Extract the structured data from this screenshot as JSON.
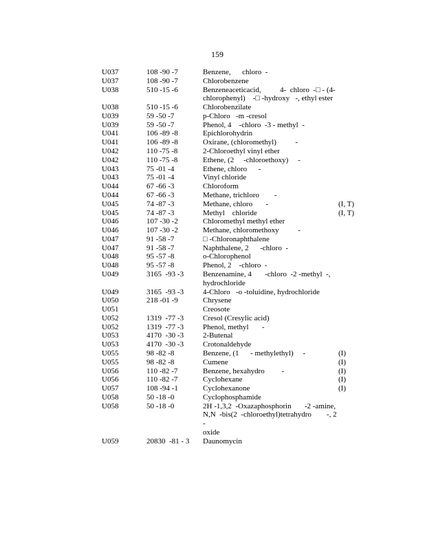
{
  "page_number": "159",
  "rows": [
    {
      "code": "U037",
      "cas": "108 -90 -7",
      "name": "Benzene,      chloro  -",
      "flag": ""
    },
    {
      "code": "U037",
      "cas": "108 -90 -7",
      "name": "Chlorobenzene",
      "flag": ""
    },
    {
      "code": "U038",
      "cas": "510 -15 -6",
      "name": "Benzeneaceticacid,          4-  chloro  -□ - (4-\nchlorophenyl)    -□ -hydroxy   -, ethyl ester",
      "flag": ""
    },
    {
      "code": "U038",
      "cas": "510 -15 -6",
      "name": "Chlorobenzilate",
      "flag": ""
    },
    {
      "code": "U039",
      "cas": "59 -50 -7",
      "name": "p-Chloro   -m -cresol",
      "flag": ""
    },
    {
      "code": "U039",
      "cas": "59 -50 -7",
      "name": "Phenol, 4    -chloro  -3 - methyl  -",
      "flag": ""
    },
    {
      "code": "U041",
      "cas": "106 -89 -8",
      "name": "Epichlorohydrin",
      "flag": ""
    },
    {
      "code": "U041",
      "cas": "106 -89 -8",
      "name": "Oxirane, (chloromethyl)          -",
      "flag": ""
    },
    {
      "code": "U042",
      "cas": "110 -75 -8",
      "name": "2-Chloroethyl vinyl ether",
      "flag": ""
    },
    {
      "code": "U042",
      "cas": "110 -75 -8",
      "name": "Ethene, (2     -chloroethoxy)     -",
      "flag": ""
    },
    {
      "code": "U043",
      "cas": "75 -01 -4",
      "name": "Ethene, chloro      -",
      "flag": ""
    },
    {
      "code": "U043",
      "cas": "75 -01 -4",
      "name": "Vinyl chloride",
      "flag": ""
    },
    {
      "code": "U044",
      "cas": "67 -66 -3",
      "name": "Chloroform",
      "flag": ""
    },
    {
      "code": "U044",
      "cas": "67 -66 -3",
      "name": "Methane, trichloro        -",
      "flag": ""
    },
    {
      "code": "U045",
      "cas": "74 -87 -3",
      "name": "Methane, chloro       -",
      "flag": "(I, T)"
    },
    {
      "code": "U045",
      "cas": "74 -87 -3",
      "name": "Methyl    chloride",
      "flag": "(I, T)"
    },
    {
      "code": "U046",
      "cas": "107 -30 -2",
      "name": "Chloromethyl methyl ether",
      "flag": ""
    },
    {
      "code": "U046",
      "cas": "107 -30 -2",
      "name": "Methane, chloromethoxy          -",
      "flag": ""
    },
    {
      "code": "U047",
      "cas": "91 -58 -7",
      "name": "□ -Chloronaphthalene",
      "flag": ""
    },
    {
      "code": "U047",
      "cas": "91 -58 -7",
      "name": "Naphthalene, 2      -chloro  -",
      "flag": ""
    },
    {
      "code": "U048",
      "cas": "95 -57 -8",
      "name": "o-Chlorophenol",
      "flag": ""
    },
    {
      "code": "U048",
      "cas": "95 -57 -8",
      "name": "Phenol, 2    -chloro  -",
      "flag": ""
    },
    {
      "code": "U049",
      "cas": "3165  -93 -3",
      "name": "Benzenamine, 4       -chloro  -2 -methyl  -,\nhydrochloride",
      "flag": ""
    },
    {
      "code": "U049",
      "cas": "3165  -93 -3",
      "name": "4-Chloro   -o -toluidine, hydrochloride",
      "flag": ""
    },
    {
      "code": "U050",
      "cas": "218 -01 -9",
      "name": "Chrysene",
      "flag": ""
    },
    {
      "code": "U051",
      "cas": "",
      "name": "Creosote",
      "flag": ""
    },
    {
      "code": "U052",
      "cas": "1319  -77 -3",
      "name": "Cresol (Cresylic acid)",
      "flag": ""
    },
    {
      "code": "U052",
      "cas": "1319  -77 -3",
      "name": "Phenol, methyl       -",
      "flag": ""
    },
    {
      "code": "U053",
      "cas": "4170  -30 -3",
      "name": "2-Butenal",
      "flag": ""
    },
    {
      "code": "U053",
      "cas": "4170  -30 -3",
      "name": "Crotonaldehyde",
      "flag": ""
    },
    {
      "code": "U055",
      "cas": "98 -82 -8",
      "name": "Benzene, (1      - methylethyl)     -",
      "flag": "(I)"
    },
    {
      "code": "U055",
      "cas": "98 -82 -8",
      "name": "Cumene",
      "flag": "(I)"
    },
    {
      "code": "U056",
      "cas": "110 -82 -7",
      "name": "Benzene, hexahydro         -",
      "flag": "(I)"
    },
    {
      "code": "U056",
      "cas": "110 -82 -7",
      "name": "Cyclohexane",
      "flag": "(I)"
    },
    {
      "code": "U057",
      "cas": "108 -94 -1",
      "name": "Cyclohexanone",
      "flag": "(I)"
    },
    {
      "code": "U058",
      "cas": "50 -18 -0",
      "name": "Cyclophosphamide",
      "flag": ""
    },
    {
      "code": "U058",
      "cas": "50 -18 -0",
      "name": "2H -1,3,2  -Oxazaphosphorin       -2 -amine,\nN,N  -bis(2  -chloroethyl)tetrahydro        -, 2 -\noxide",
      "flag": ""
    },
    {
      "code": "U059",
      "cas": "20830  -81 - 3",
      "name": "Daunomycin",
      "flag": ""
    }
  ]
}
